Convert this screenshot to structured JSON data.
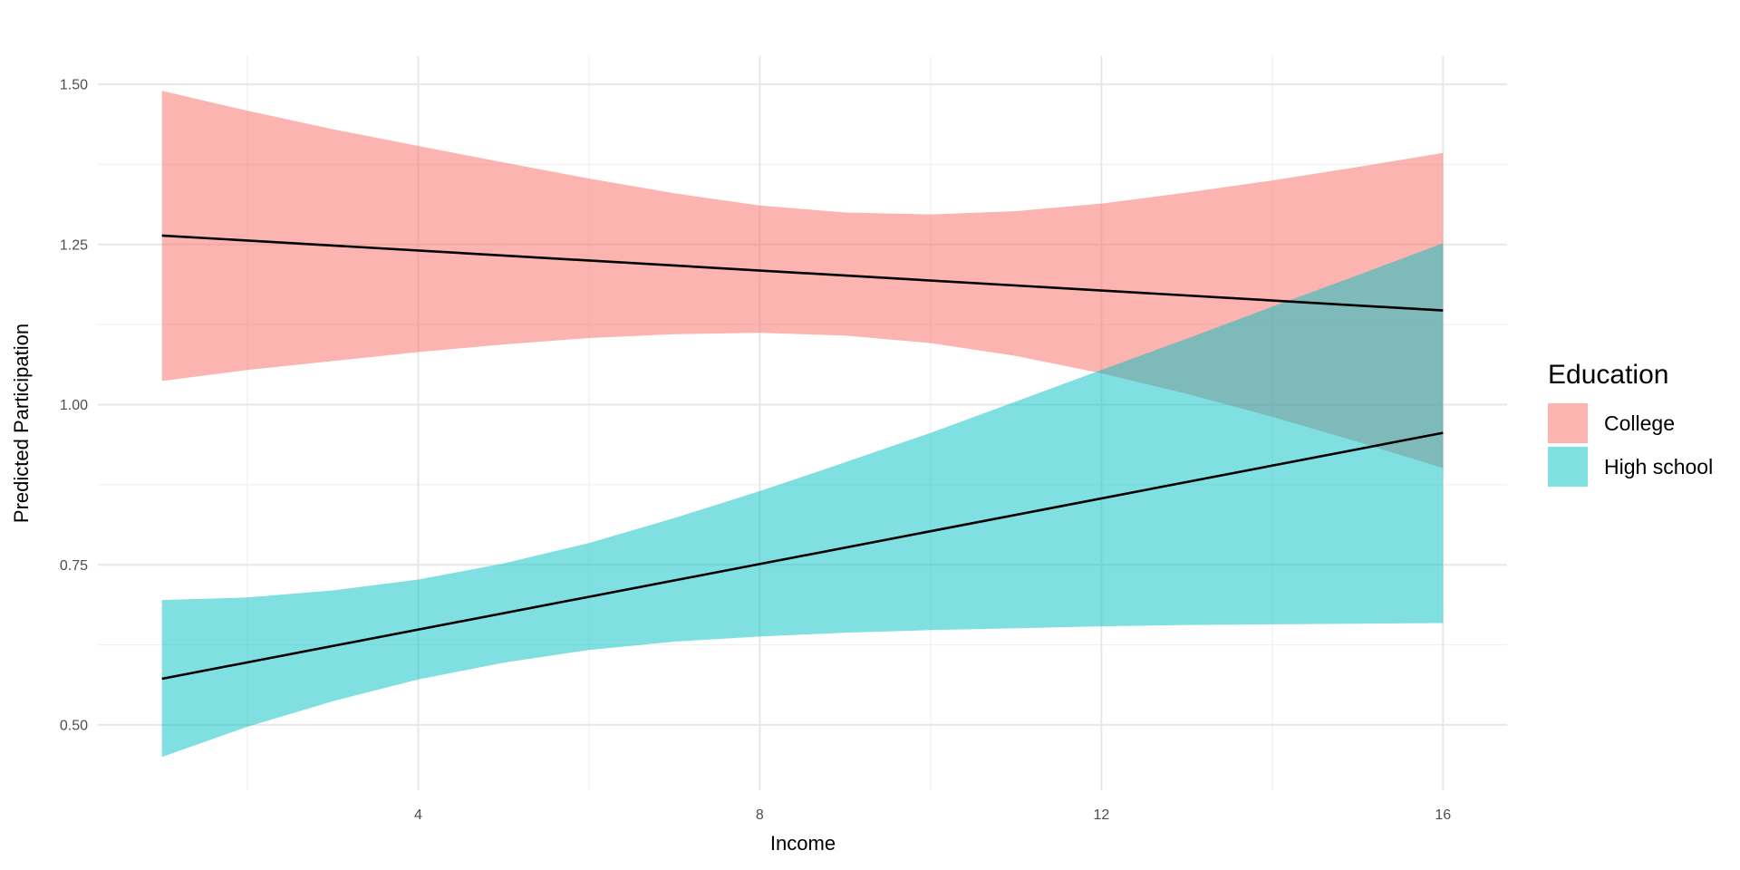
{
  "chart_data": {
    "type": "line",
    "title": "",
    "xlabel": "Income",
    "ylabel": "Predicted Participation",
    "legend_title": "Education",
    "legend_position": "right",
    "grid": true,
    "x_range": [
      0.25,
      16.75
    ],
    "y_range": [
      0.398,
      1.544
    ],
    "x_ticks": [
      4,
      8,
      12,
      16
    ],
    "x_minor_ticks": [
      2,
      6,
      10,
      14
    ],
    "y_ticks": [
      0.5,
      0.75,
      1.0,
      1.25,
      1.5
    ],
    "y_tick_labels": [
      "0.50",
      "0.75",
      "1.00",
      "1.25",
      "1.50"
    ],
    "y_minor_ticks": [
      0.625,
      0.875,
      1.125,
      1.375
    ],
    "x": [
      1,
      2,
      3,
      4,
      5,
      6,
      7,
      8,
      9,
      10,
      11,
      12,
      13,
      14,
      15,
      16
    ],
    "series": [
      {
        "name": "College",
        "color": "#F8766D",
        "fill_rgba": "rgba(248,118,109,0.55)",
        "line_color": "#000000",
        "line": {
          "x": [
            1,
            16
          ],
          "y": [
            1.264,
            1.147
          ]
        },
        "ribbon_upper": [
          1.49,
          1.459,
          1.43,
          1.404,
          1.378,
          1.353,
          1.33,
          1.311,
          1.3,
          1.297,
          1.302,
          1.314,
          1.331,
          1.35,
          1.371,
          1.393
        ],
        "ribbon_lower": [
          1.037,
          1.054,
          1.068,
          1.082,
          1.094,
          1.104,
          1.11,
          1.112,
          1.108,
          1.096,
          1.076,
          1.049,
          1.017,
          0.981,
          0.942,
          0.901
        ]
      },
      {
        "name": "High school",
        "color": "#00BFC4",
        "fill_rgba": "rgba(0,191,196,0.50)",
        "line_color": "#000000",
        "line": {
          "x": [
            1,
            16
          ],
          "y": [
            0.572,
            0.956
          ]
        },
        "ribbon_upper": [
          0.695,
          0.699,
          0.71,
          0.727,
          0.752,
          0.784,
          0.823,
          0.865,
          0.91,
          0.956,
          1.005,
          1.054,
          1.103,
          1.153,
          1.202,
          1.252
        ],
        "ribbon_lower": [
          0.45,
          0.497,
          0.537,
          0.571,
          0.597,
          0.617,
          0.63,
          0.638,
          0.644,
          0.648,
          0.651,
          0.654,
          0.656,
          0.657,
          0.658,
          0.659
        ]
      }
    ],
    "colors": {
      "major_grid": "#E7E7E7",
      "minor_grid": "#F1F1F1",
      "tick_text": "#4D4D4D",
      "panel_background": "#FFFFFF"
    }
  }
}
